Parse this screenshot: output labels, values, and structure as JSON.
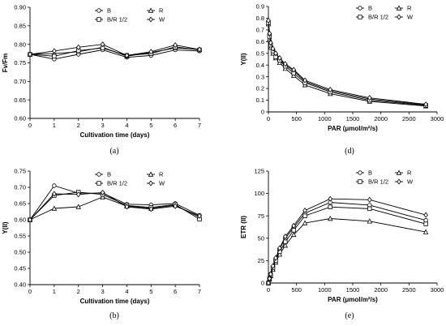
{
  "chart_data": [
    {
      "panel": "(a)",
      "type": "line",
      "xlabel": "Cultivation time (days)",
      "ylabel": "Fv/Fm",
      "xlim": [
        0,
        7
      ],
      "ylim": [
        0.6,
        0.9
      ],
      "xticks": [
        "0",
        "1",
        "2",
        "3",
        "4",
        "5",
        "6",
        "7"
      ],
      "yticks": [
        "0.60",
        "0.65",
        "0.70",
        "0.75",
        "0.80",
        "0.85",
        "0.90"
      ],
      "x": [
        0,
        1,
        2,
        3,
        4,
        5,
        6,
        7
      ],
      "series": [
        {
          "name": "B",
          "marker": "circle",
          "values": [
            0.773,
            0.76,
            0.773,
            0.785,
            0.765,
            0.77,
            0.785,
            0.782
          ]
        },
        {
          "name": "R",
          "marker": "triangle",
          "values": [
            0.773,
            0.775,
            0.78,
            0.792,
            0.768,
            0.778,
            0.79,
            0.786
          ]
        },
        {
          "name": "B/R 1/2",
          "marker": "square",
          "values": [
            0.773,
            0.768,
            0.783,
            0.79,
            0.77,
            0.775,
            0.793,
            0.785
          ]
        },
        {
          "name": "W",
          "marker": "diamond",
          "values": [
            0.773,
            0.782,
            0.792,
            0.8,
            0.77,
            0.78,
            0.798,
            0.786
          ]
        }
      ],
      "legend": [
        "B",
        "R",
        "B/R 1/2",
        "W"
      ],
      "legend_position": "top-center"
    },
    {
      "panel": "(d)",
      "type": "line",
      "xlabel": "PAR (μmol/m²/s)",
      "ylabel": "Y(II)",
      "xlim": [
        0,
        3000
      ],
      "ylim": [
        0,
        0.9
      ],
      "xticks": [
        "0",
        "500",
        "1000",
        "1500",
        "2000",
        "2500",
        "3000"
      ],
      "yticks": [
        "0",
        "0.1",
        "0.2",
        "0.3",
        "0.4",
        "0.5",
        "0.6",
        "0.7",
        "0.8",
        "0.9"
      ],
      "x": [
        0,
        20,
        40,
        80,
        130,
        200,
        300,
        450,
        650,
        1100,
        1800,
        2800
      ],
      "series": [
        {
          "name": "B",
          "marker": "circle",
          "values": [
            0.77,
            0.66,
            0.58,
            0.53,
            0.49,
            0.45,
            0.4,
            0.35,
            0.26,
            0.18,
            0.11,
            0.06
          ]
        },
        {
          "name": "R",
          "marker": "triangle",
          "values": [
            0.75,
            0.62,
            0.55,
            0.5,
            0.46,
            0.42,
            0.37,
            0.31,
            0.23,
            0.155,
            0.09,
            0.05
          ]
        },
        {
          "name": "B/R 1/2",
          "marker": "square",
          "values": [
            0.76,
            0.64,
            0.57,
            0.52,
            0.47,
            0.44,
            0.39,
            0.33,
            0.25,
            0.17,
            0.1,
            0.055
          ]
        },
        {
          "name": "W",
          "marker": "diamond",
          "values": [
            0.78,
            0.67,
            0.59,
            0.54,
            0.5,
            0.46,
            0.41,
            0.36,
            0.27,
            0.19,
            0.12,
            0.065
          ]
        }
      ],
      "legend": [
        "B",
        "R",
        "B/R 1/2",
        "W"
      ],
      "legend_position": "top-right"
    },
    {
      "panel": "(b)",
      "type": "line",
      "xlabel": "Cultivation time (days)",
      "ylabel": "Y(II)",
      "xlim": [
        0,
        7
      ],
      "ylim": [
        0.4,
        0.75
      ],
      "xticks": [
        "0",
        "1",
        "2",
        "3",
        "4",
        "5",
        "6",
        "7"
      ],
      "yticks": [
        "0.40",
        "0.45",
        "0.50",
        "0.55",
        "0.60",
        "0.65",
        "0.70",
        "0.75"
      ],
      "x": [
        0,
        1,
        2,
        3,
        4,
        5,
        6,
        7
      ],
      "series": [
        {
          "name": "B",
          "marker": "circle",
          "values": [
            0.6,
            0.705,
            0.682,
            0.682,
            0.648,
            0.646,
            0.65,
            0.614
          ]
        },
        {
          "name": "R",
          "marker": "triangle",
          "values": [
            0.6,
            0.635,
            0.64,
            0.67,
            0.642,
            0.635,
            0.645,
            0.608
          ]
        },
        {
          "name": "B/R 1/2",
          "marker": "square",
          "values": [
            0.6,
            0.675,
            0.685,
            0.678,
            0.644,
            0.638,
            0.647,
            0.602
          ]
        },
        {
          "name": "W",
          "marker": "diamond",
          "values": [
            0.6,
            0.68,
            0.678,
            0.684,
            0.64,
            0.633,
            0.642,
            0.612
          ]
        }
      ],
      "legend": [
        "B",
        "R",
        "B/R 1/2",
        "W"
      ],
      "legend_position": "top-center"
    },
    {
      "panel": "(e)",
      "type": "line",
      "xlabel": "PAR (μmol/m²/s)",
      "ylabel": "ETR (II)",
      "xlim": [
        0,
        3000
      ],
      "ylim": [
        0,
        125
      ],
      "xticks": [
        "0",
        "500",
        "1000",
        "1500",
        "2000",
        "2500",
        "3000"
      ],
      "yticks": [
        "0",
        "25",
        "50",
        "75",
        "100",
        "125"
      ],
      "x": [
        0,
        20,
        40,
        80,
        130,
        200,
        300,
        450,
        650,
        1100,
        1800,
        2800
      ],
      "series": [
        {
          "name": "B",
          "marker": "circle",
          "values": [
            0,
            5,
            10,
            18,
            27,
            38,
            50,
            62,
            78,
            90,
            87,
            70
          ]
        },
        {
          "name": "R",
          "marker": "triangle",
          "values": [
            0,
            4,
            8,
            15,
            23,
            32,
            42,
            54,
            67,
            72,
            69,
            57
          ]
        },
        {
          "name": "B/R 1/2",
          "marker": "square",
          "values": [
            0,
            5,
            9,
            17,
            25,
            35,
            46,
            59,
            75,
            85,
            83,
            66
          ]
        },
        {
          "name": "W",
          "marker": "diamond",
          "values": [
            0,
            5,
            10,
            19,
            28,
            39,
            52,
            64,
            81,
            94,
            93,
            76
          ]
        }
      ],
      "legend": [
        "B",
        "R",
        "B/R 1/2",
        "W"
      ],
      "legend_position": "top-right"
    }
  ],
  "panel_labels": [
    "(a)",
    "(d)",
    "(b)",
    "(e)"
  ]
}
